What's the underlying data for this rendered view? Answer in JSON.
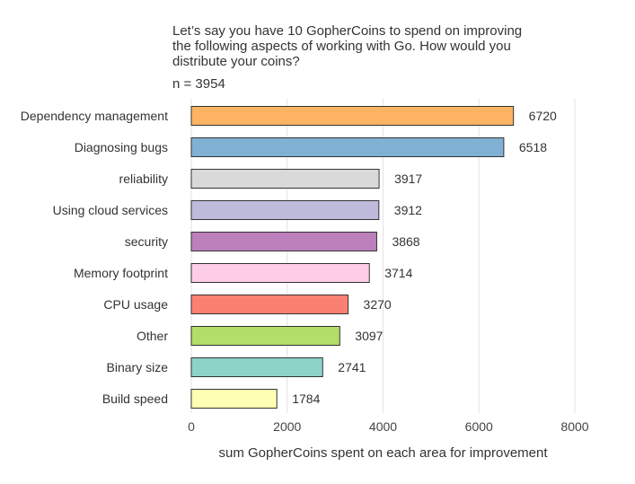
{
  "chart_data": {
    "type": "bar",
    "orientation": "horizontal",
    "title": "Let’s say you have 10 GopherCoins to spend on improving the following aspects of working with Go. How would you distribute your coins?",
    "title_lines": [
      "Let’s say you have 10 GopherCoins to spend on improving",
      "the following aspects of working with Go. How would you",
      "distribute your coins?"
    ],
    "subtitle": "n = 3954",
    "xlabel": "sum GopherCoins spent on each area for improvement",
    "ylabel": "",
    "xlim": [
      0,
      8000
    ],
    "xticks": [
      "0",
      "2000",
      "4000",
      "6000",
      "8000"
    ],
    "grid": "vertical",
    "categories": [
      "Dependency management",
      "Diagnosing bugs",
      "reliability",
      "Using cloud services",
      "security",
      "Memory footprint",
      "CPU usage",
      "Other",
      "Binary size",
      "Build speed"
    ],
    "values": [
      6720,
      6518,
      3917,
      3912,
      3868,
      3714,
      3270,
      3097,
      2741,
      1784
    ],
    "colors": [
      "#fdb462",
      "#80b1d3",
      "#d9d9d9",
      "#bebada",
      "#bc80bd",
      "#fccde5",
      "#fb8072",
      "#b3de69",
      "#8dd3c7",
      "#ffffb3"
    ]
  }
}
